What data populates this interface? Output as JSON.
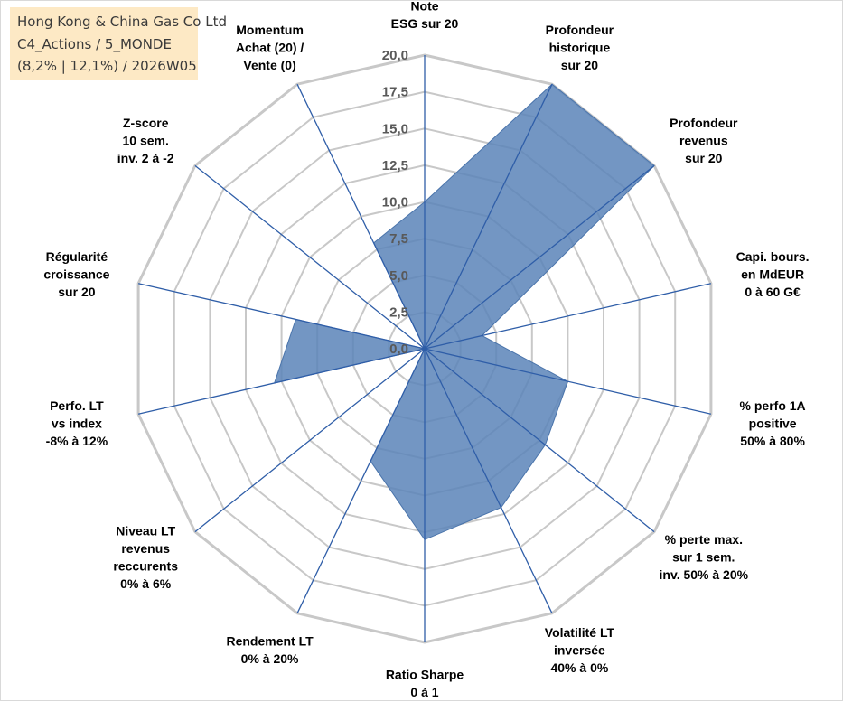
{
  "header": {
    "title_lines": [
      "Hong Kong & China Gas Co Ltd",
      "C4_Actions / 5_MONDE",
      "(8,2% | 12,1%) / 2026W05"
    ]
  },
  "chart_data": {
    "type": "radar",
    "title": "Hong Kong & China Gas Co Ltd",
    "subtitle": "C4_Actions / 5_MONDE (8,2% | 12,1%) / 2026W05",
    "r_range": [
      0,
      20
    ],
    "r_step": 2.5,
    "grid": true,
    "tick_labels": [
      "0,0",
      "2,5",
      "5,0",
      "7,5",
      "10,0",
      "12,5",
      "15,0",
      "17,5",
      "20,0"
    ],
    "axes": [
      {
        "label_lines": [
          "Note",
          "ESG sur 20"
        ]
      },
      {
        "label_lines": [
          "Profondeur",
          "historique",
          "sur 20"
        ]
      },
      {
        "label_lines": [
          "Profondeur",
          "revenus",
          "sur 20"
        ]
      },
      {
        "label_lines": [
          "Capi. bours.",
          "en MdEUR",
          "0 à 60 G€"
        ]
      },
      {
        "label_lines": [
          "% perfo 1A",
          "positive",
          "50% à 80%"
        ]
      },
      {
        "label_lines": [
          "% perte max.",
          "sur 1 sem.",
          "inv. 50% à 20%"
        ]
      },
      {
        "label_lines": [
          "Volatilité LT",
          "inversée",
          "40% à 0%"
        ]
      },
      {
        "label_lines": [
          "Ratio Sharpe",
          "0 à 1"
        ]
      },
      {
        "label_lines": [
          "Rendement LT",
          "0% à 20%"
        ]
      },
      {
        "label_lines": [
          "Niveau LT",
          "revenus",
          "reccurents",
          "0% à 6%"
        ]
      },
      {
        "label_lines": [
          "Perfo. LT",
          "vs index",
          "-8% à 12%"
        ]
      },
      {
        "label_lines": [
          "Régularité",
          "croissance",
          "sur 20"
        ]
      },
      {
        "label_lines": [
          "Z-score",
          "10 sem.",
          "inv. 2 à -2"
        ]
      },
      {
        "label_lines": [
          "Momentum",
          "Achat (20) /",
          "Vente (0)"
        ]
      }
    ],
    "series": [
      {
        "values": [
          10.0,
          20.0,
          20.0,
          4.0,
          10.0,
          10.5,
          12.0,
          13.0,
          8.5,
          0.0,
          10.5,
          9.0,
          0.0,
          8.0
        ],
        "color": "#5b84b8"
      }
    ],
    "colors": {
      "fill": "#5b84b8",
      "stroke": "#4a74ab",
      "spoke": "#2f5ea8",
      "grid": "#c8c8c8",
      "title_bg": "#fde9c5"
    }
  }
}
